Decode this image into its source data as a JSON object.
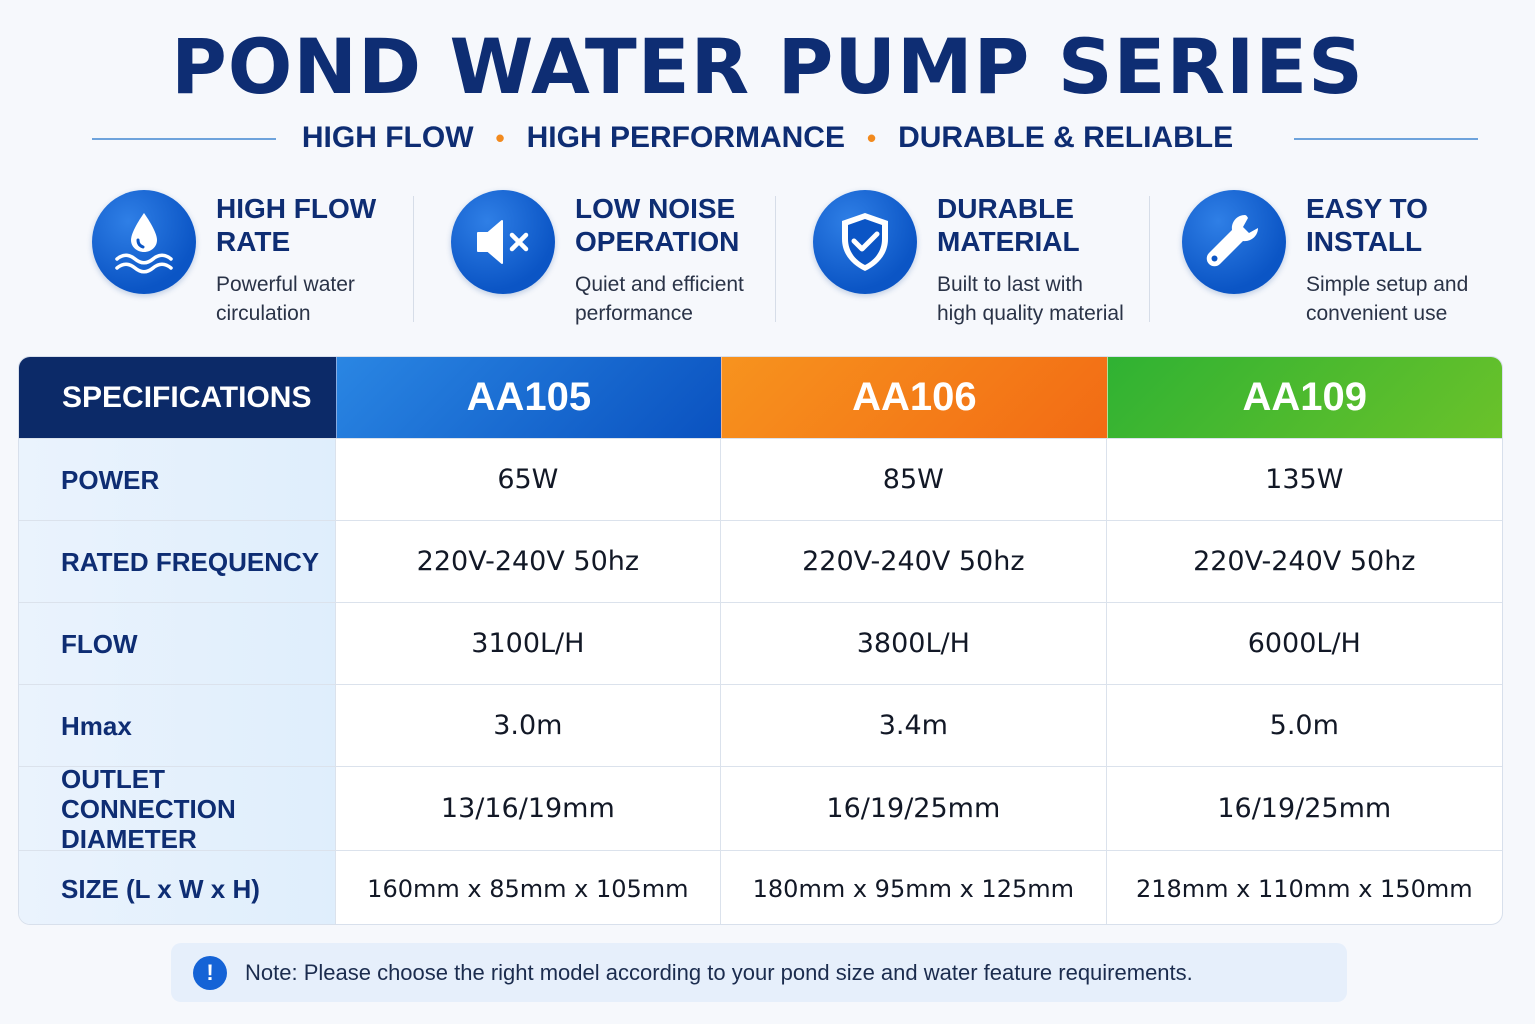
{
  "header": {
    "title": "POND WATER PUMP SERIES",
    "tagline": [
      "HIGH FLOW",
      "HIGH PERFORMANCE",
      "DURABLE & RELIABLE"
    ],
    "tagline_separator": "•"
  },
  "features": [
    {
      "icon": "water-drop-waves-icon",
      "title_1": "HIGH FLOW",
      "title_2": "RATE",
      "desc_1": "Powerful water",
      "desc_2": "circulation"
    },
    {
      "icon": "speaker-mute-icon",
      "title_1": "LOW NOISE",
      "title_2": "OPERATION",
      "desc_1": "Quiet and efficient",
      "desc_2": "performance"
    },
    {
      "icon": "shield-check-icon",
      "title_1": "DURABLE",
      "title_2": "MATERIAL",
      "desc_1": "Built to last with",
      "desc_2": "high quality material"
    },
    {
      "icon": "wrench-icon",
      "title_1": "EASY TO",
      "title_2": "INSTALL",
      "desc_1": "Simple setup and",
      "desc_2": "convenient use"
    }
  ],
  "table": {
    "spec_header": "SPECIFICATIONS",
    "models": [
      {
        "name": "AA105",
        "color": "#0a52c0"
      },
      {
        "name": "AA106",
        "color": "#f26b14"
      },
      {
        "name": "AA109",
        "color": "#4bb52c"
      }
    ],
    "rows": [
      {
        "label": "POWER",
        "values": [
          "65W",
          "85W",
          "135W"
        ]
      },
      {
        "label": "RATED FREQUENCY",
        "values": [
          "220V-240V 50hz",
          "220V-240V 50hz",
          "220V-240V 50hz"
        ]
      },
      {
        "label": "FLOW",
        "values": [
          "3100L/H",
          "3800L/H",
          "6000L/H"
        ]
      },
      {
        "label": "Hmax",
        "values": [
          "3.0m",
          "3.4m",
          "5.0m"
        ]
      },
      {
        "label_1": "OUTLET CONNECTION",
        "label_2": "DIAMETER",
        "values": [
          "13/16/19mm",
          "16/19/25mm",
          "16/19/25mm"
        ]
      },
      {
        "label": "SIZE (L x W x H)",
        "values": [
          "160mm x 85mm x 105mm",
          "180mm x 95mm x 125mm",
          "218mm x 110mm x 150mm"
        ]
      }
    ]
  },
  "note": {
    "icon": "exclamation-icon",
    "icon_glyph": "!",
    "text": "Note: Please choose the right model according to your pond size and water feature requirements."
  },
  "colors": {
    "brand_navy": "#0e2d73",
    "accent_orange": "#f28a1e",
    "icon_blue": "#0b55c5"
  }
}
